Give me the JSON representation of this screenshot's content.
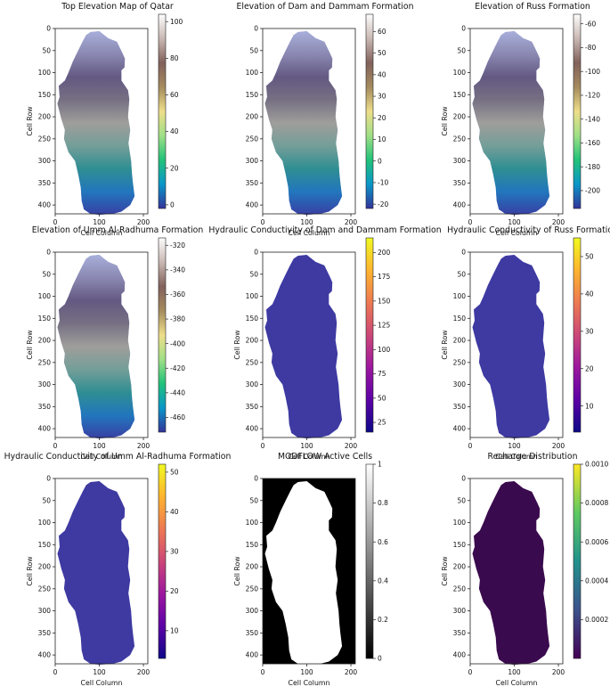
{
  "chart_data": [
    {
      "type": "heatmap",
      "title": "Top Elevation Map of Qatar",
      "xlabel": "Cell Column",
      "ylabel": "Cell Row",
      "xticks": [
        0,
        100,
        200
      ],
      "yticks": [
        0,
        50,
        100,
        150,
        200,
        250,
        300,
        350,
        400
      ],
      "xlim": [
        0,
        210
      ],
      "ylim": [
        0,
        420
      ],
      "colormap": "terrain",
      "colorbar": {
        "min": -2,
        "max": 104,
        "ticks": [
          0,
          20,
          40,
          60,
          80,
          100
        ]
      }
    },
    {
      "type": "heatmap",
      "title": "Elevation of Dam and Dammam Formation",
      "xlabel": "Cell Column",
      "ylabel": "",
      "xticks": [
        0,
        100,
        200
      ],
      "yticks": [
        0,
        50,
        100,
        150,
        200,
        250,
        300,
        350,
        400
      ],
      "xlim": [
        0,
        210
      ],
      "ylim": [
        0,
        420
      ],
      "colormap": "terrain",
      "colorbar": {
        "min": -22,
        "max": 68,
        "ticks": [
          -20,
          -10,
          0,
          10,
          20,
          30,
          40,
          50,
          60
        ]
      }
    },
    {
      "type": "heatmap",
      "title": "Elevation of Russ Formation",
      "xlabel": "Cell Column",
      "ylabel": "Cell Row",
      "xticks": [
        0,
        100,
        200
      ],
      "yticks": [
        0,
        50,
        100,
        150,
        200,
        250,
        300,
        350,
        400
      ],
      "xlim": [
        0,
        210
      ],
      "ylim": [
        0,
        420
      ],
      "colormap": "terrain",
      "colorbar": {
        "min": -215,
        "max": -52,
        "ticks": [
          -200,
          -180,
          -160,
          -140,
          -120,
          -100,
          -80,
          -60
        ]
      }
    },
    {
      "type": "heatmap",
      "title": "Elevation of Umm Al-Radhuma Formation",
      "xlabel": "Cell Column",
      "ylabel": "Cell Row",
      "xticks": [
        0,
        100,
        200
      ],
      "yticks": [
        0,
        50,
        100,
        150,
        200,
        250,
        300,
        350,
        400
      ],
      "xlim": [
        0,
        210
      ],
      "ylim": [
        0,
        420
      ],
      "colormap": "terrain",
      "colorbar": {
        "min": -472,
        "max": -314,
        "ticks": [
          -460,
          -440,
          -420,
          -400,
          -380,
          -360,
          -340,
          -320
        ]
      }
    },
    {
      "type": "heatmap",
      "title": "Hydraulic Conductivity of Dam and Dammam Formation",
      "xlabel": "Cell Column",
      "ylabel": "Cell Row",
      "xticks": [
        0,
        100,
        200
      ],
      "yticks": [
        0,
        50,
        100,
        150,
        200,
        250,
        300,
        350,
        400
      ],
      "xlim": [
        0,
        210
      ],
      "ylim": [
        0,
        420
      ],
      "colormap": "plasma",
      "colorbar": {
        "min": 15,
        "max": 215,
        "ticks": [
          25,
          50,
          75,
          100,
          125,
          150,
          175,
          200
        ]
      }
    },
    {
      "type": "heatmap",
      "title": "Hydraulic Conductivity of Russ Formation",
      "xlabel": "Cell Column",
      "ylabel": "Cell Row",
      "xticks": [
        0,
        100,
        200
      ],
      "yticks": [
        0,
        50,
        100,
        150,
        200,
        250,
        300,
        350,
        400
      ],
      "xlim": [
        0,
        210
      ],
      "ylim": [
        0,
        420
      ],
      "colormap": "plasma",
      "colorbar": {
        "min": 3,
        "max": 55,
        "ticks": [
          10,
          20,
          30,
          40,
          50
        ]
      }
    },
    {
      "type": "heatmap",
      "title": "Hydraulic Conductivity of Umm Al-Radhuma Formation",
      "xlabel": "Cell Column",
      "ylabel": "Cell Row",
      "xticks": [
        0,
        100,
        200
      ],
      "yticks": [
        0,
        50,
        100,
        150,
        200,
        250,
        300,
        350,
        400
      ],
      "xlim": [
        0,
        210
      ],
      "ylim": [
        0,
        420
      ],
      "colormap": "plasma",
      "colorbar": {
        "min": 3,
        "max": 52,
        "ticks": [
          10,
          20,
          30,
          40,
          50
        ]
      }
    },
    {
      "type": "heatmap",
      "title": "MODFLOW Active Cells",
      "xlabel": "Cell Column",
      "ylabel": "Cell Row",
      "xticks": [
        0,
        100,
        200
      ],
      "yticks": [
        0,
        50,
        100,
        150,
        200,
        250,
        300,
        350,
        400
      ],
      "xlim": [
        0,
        210
      ],
      "ylim": [
        0,
        420
      ],
      "colormap": "gray",
      "colorbar": {
        "min": 0,
        "max": 1,
        "ticks": [
          0.0,
          0.2,
          0.4,
          0.6,
          0.8,
          1.0
        ]
      }
    },
    {
      "type": "heatmap",
      "title": "Recharge Distribution",
      "xlabel": "Cell Column",
      "ylabel": "Cell Row",
      "xticks": [
        0,
        100,
        200
      ],
      "yticks": [
        0,
        50,
        100,
        150,
        200,
        250,
        300,
        350,
        400
      ],
      "xlim": [
        0,
        210
      ],
      "ylim": [
        0,
        420
      ],
      "colormap": "viridis",
      "colorbar": {
        "min": 0,
        "max": 0.001,
        "ticks": [
          0.0002,
          0.0004,
          0.0006,
          0.0008,
          0.001
        ]
      }
    }
  ]
}
